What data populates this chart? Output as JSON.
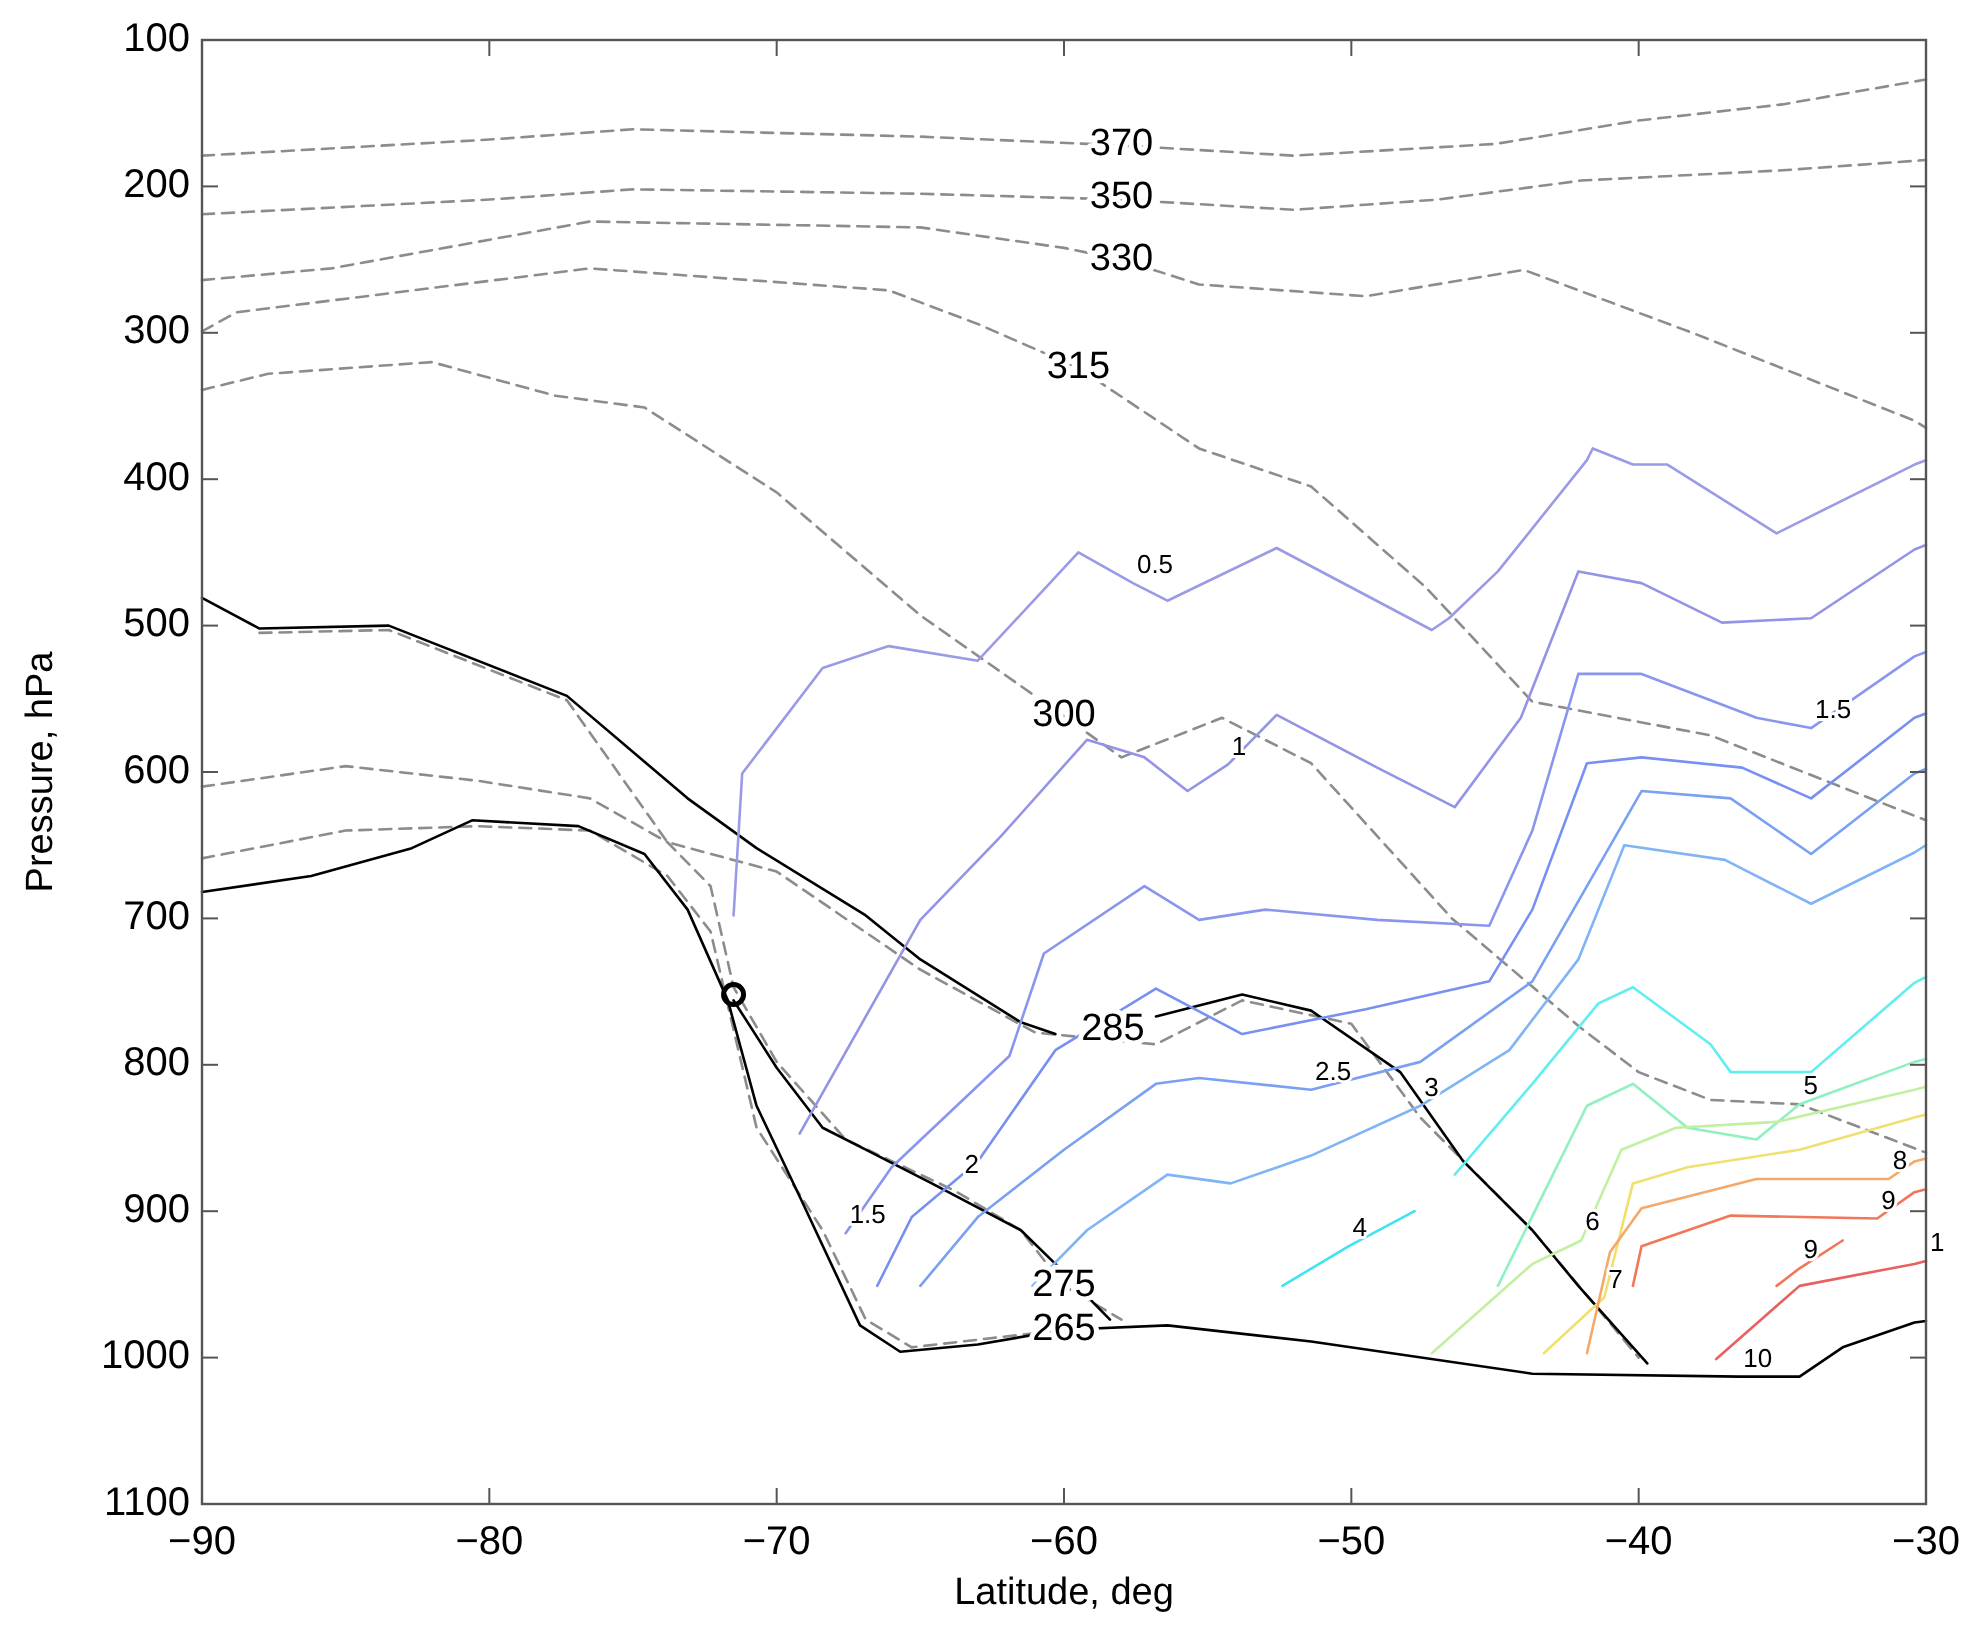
{
  "chart_data": {
    "type": "line",
    "xlabel": "Latitude, deg",
    "ylabel": "Pressure, hPa",
    "xlim": [
      -90,
      -30
    ],
    "ylim": [
      1100,
      100
    ],
    "xticks": [
      -90,
      -80,
      -70,
      -60,
      -50,
      -40,
      -30
    ],
    "yticks": [
      100,
      200,
      300,
      400,
      500,
      600,
      700,
      800,
      900,
      1000,
      1100
    ],
    "grid": false,
    "series": [
      {
        "color": "#8c8c8c",
        "line_style": "dashed",
        "x": [
          -90,
          -80,
          -75,
          -65,
          -58,
          -52,
          -45,
          -40,
          -35,
          -30
        ],
        "values": [
          179,
          168,
          161,
          166,
          172,
          179,
          171,
          155,
          144,
          127
        ]
      },
      {
        "color": "#8c8c8c",
        "line_style": "dashed",
        "x": [
          -90,
          -80,
          -75,
          -65,
          -58,
          -52,
          -47,
          -42,
          -35,
          -30
        ],
        "values": [
          219,
          209,
          202,
          205,
          209,
          216,
          209,
          196,
          189,
          182
        ]
      },
      {
        "color": "#8c8c8c",
        "line_style": "dashed",
        "x": [
          -90,
          -85.5,
          -76.5,
          -65,
          -60,
          -58,
          -55.3,
          -49.5,
          -44,
          -38,
          -30.4,
          -30
        ],
        "values": [
          264,
          256,
          224,
          228,
          242,
          250,
          267,
          275,
          257,
          301,
          360,
          365
        ]
      },
      {
        "color": "#8c8c8c",
        "line_style": "dashed",
        "x": [
          -90,
          -88.8,
          -76.5,
          -66.1,
          -63,
          -59.5,
          -55.3,
          -51.4,
          -47.4,
          -43.7,
          -37.5,
          -30
        ],
        "values": [
          299,
          286,
          256,
          271,
          294,
          324,
          379,
          405,
          474,
          552,
          575,
          633
        ]
      },
      {
        "color": "#8c8c8c",
        "line_style": "dashed",
        "x": [
          -90,
          -87.7,
          -82,
          -77.7,
          -74.6,
          -70,
          -65,
          -60,
          -58,
          -54.5,
          -51.4,
          -46.5,
          -42,
          -40,
          -37.5,
          -34.4,
          -30
        ],
        "values": [
          339,
          328,
          320,
          343,
          351,
          409,
          493,
          562,
          590,
          563,
          594,
          700,
          775,
          805,
          824,
          827,
          860
        ]
      },
      {
        "color": "#8c8c8c",
        "line_style": "dashed",
        "x": [
          -88,
          -83.5,
          -77.3,
          -73.8,
          -70,
          -65,
          -61,
          -56.8,
          -53.8,
          -50,
          -47.6,
          -43.7,
          -40
        ],
        "values": [
          505,
          503,
          551,
          648,
          668,
          735,
          778,
          786,
          756,
          772,
          836,
          913,
          1000
        ]
      },
      {
        "color": "#8c8c8c",
        "line_style": "dashed",
        "x": [
          -90,
          -85,
          -80.4,
          -76.5,
          -73.8,
          -72.3,
          -71.5,
          -70,
          -67.6,
          -63.8,
          -61.5,
          -60,
          -58
        ],
        "values": [
          610,
          596,
          606,
          618,
          648,
          678,
          747,
          798,
          851,
          886,
          913,
          951,
          974
        ]
      },
      {
        "color": "#8c8c8c",
        "line_style": "dashed",
        "x": [
          -90,
          -85,
          -80.4,
          -76.5,
          -73.8,
          -72.3,
          -70.7,
          -68.4,
          -66.9,
          -65.3,
          -60
        ],
        "values": [
          659,
          640,
          637,
          640,
          671,
          709,
          843,
          913,
          974,
          993,
          981
        ]
      },
      {
        "color": "#000000",
        "line_style": "solid",
        "x": [
          -90,
          -86.2,
          -82.7,
          -80.6,
          -76.9,
          -74.6,
          -73.1,
          -71.7,
          -70.7,
          -69.2,
          -67.1,
          -65.7,
          -63,
          -60,
          -56.4,
          -51.4,
          -43.7,
          -36.5,
          -34.4,
          -32.9,
          -30.4,
          -30
        ],
        "values": [
          682,
          671,
          652,
          633,
          637,
          656,
          694,
          756,
          828,
          890,
          978,
          996,
          991,
          981,
          978,
          989,
          1011,
          1013,
          1013,
          993,
          976,
          975
        ]
      },
      {
        "color": "#000000",
        "line_style": "solid",
        "x": [
          -90,
          -88,
          -83.5,
          -77.3,
          -73.1,
          -70.7,
          -66.9,
          -65,
          -61.5,
          -60.3
        ],
        "values": [
          481,
          502,
          500,
          548,
          618,
          652,
          698,
          728,
          771,
          779
        ]
      },
      {
        "color": "#000000",
        "line_style": "solid",
        "x": [
          -71.5,
          -70,
          -68.4,
          -66.9,
          -64.6,
          -61.5,
          -60.3,
          -58.4
        ],
        "values": [
          756,
          802,
          843,
          858,
          881,
          913,
          936,
          974
        ]
      },
      {
        "color": "#000000",
        "line_style": "solid",
        "x": [
          -56.8,
          -53.8,
          -51.4,
          -48.3,
          -46.1,
          -43.7,
          -42.1,
          -39.7
        ],
        "values": [
          767,
          752,
          763,
          805,
          866,
          913,
          951,
          1004
        ]
      },
      {
        "type": "scatter",
        "marker": "circle",
        "color": "#000000",
        "x": [
          -71.5
        ],
        "values": [
          752
        ]
      },
      {
        "color": "#9a9ae6",
        "line_style": "solid",
        "x": [
          -71.5,
          -71.2,
          -68.4,
          -66.1,
          -63,
          -59.5,
          -57.6,
          -56.4,
          -52.6,
          -47.2,
          -46.6,
          -44.9,
          -41.8,
          -41.6,
          -40.2,
          -39,
          -35.2,
          -30.4,
          -30
        ],
        "values": [
          698,
          601,
          529,
          514,
          524,
          450,
          471,
          483,
          447,
          503,
          495,
          463,
          387,
          379,
          390,
          390,
          437,
          390,
          387
        ]
      },
      {
        "color": "#9494e6",
        "line_style": "solid",
        "x": [
          -69.2,
          -65,
          -62.2,
          -59.2,
          -57.2,
          -55.7,
          -54.3,
          -52.6,
          -49.1,
          -46.4,
          -44.1,
          -42.1,
          -39.9,
          -37.1,
          -34,
          -30.4,
          -30
        ],
        "values": [
          847,
          701,
          644,
          578,
          590,
          613,
          595,
          561,
          597,
          624,
          563,
          463,
          471,
          498,
          495,
          448,
          445
        ]
      },
      {
        "color": "#8a96ee",
        "line_style": "solid",
        "x": [
          -67.6,
          -66,
          -61.9,
          -60.7,
          -57.2,
          -55.3,
          -53,
          -49.1,
          -45.2,
          -43.7,
          -42.1,
          -39.9,
          -35.9,
          -34,
          -30.4,
          -30
        ],
        "values": [
          915,
          870,
          794,
          724,
          678,
          701,
          694,
          701,
          705,
          640,
          533,
          533,
          563,
          570,
          521,
          518
        ]
      },
      {
        "color": "#7890f2",
        "line_style": "solid",
        "x": [
          -66.5,
          -65.3,
          -63,
          -60.3,
          -56.8,
          -53.8,
          -49.5,
          -45.2,
          -43.7,
          -41.8,
          -39.9,
          -36.4,
          -34,
          -30.4,
          -30
        ],
        "values": [
          951,
          904,
          866,
          790,
          748,
          779,
          762,
          743,
          694,
          594,
          590,
          597,
          618,
          563,
          560
        ]
      },
      {
        "color": "#7aa0f4",
        "line_style": "solid",
        "x": [
          -65,
          -63,
          -60,
          -56.8,
          -55.3,
          -51.4,
          -47.6,
          -43.7,
          -41.8,
          -39.9,
          -36.8,
          -34,
          -30.4,
          -30
        ],
        "values": [
          951,
          904,
          858,
          813,
          809,
          817,
          798,
          743,
          678,
          613,
          618,
          656,
          601,
          598
        ]
      },
      {
        "color": "#80b4f6",
        "line_style": "solid",
        "x": [
          -61.1,
          -59.2,
          -56.4,
          -54.2,
          -51.4,
          -47.6,
          -44.5,
          -42.1,
          -40.5,
          -37,
          -34,
          -30.4,
          -30
        ],
        "values": [
          951,
          913,
          875,
          881,
          862,
          828,
          790,
          728,
          650,
          660,
          690,
          655,
          650
        ]
      },
      {
        "color": "#40e4f0",
        "line_style": "solid",
        "x": [
          -52.4,
          -50.1,
          -47.8
        ],
        "values": [
          951,
          924,
          900
        ]
      },
      {
        "color": "#60eef0",
        "line_style": "solid",
        "x": [
          -46.4,
          -43.7,
          -41.4,
          -40.2,
          -37.5,
          -36.8,
          -34,
          -30.4,
          -30
        ],
        "values": [
          875,
          813,
          758,
          747,
          786,
          805,
          805,
          744,
          740
        ]
      },
      {
        "color": "#90f0c0",
        "line_style": "solid",
        "x": [
          -44.9,
          -41.8,
          -40.2,
          -38.3,
          -35.9,
          -34.4,
          -30.4,
          -30
        ],
        "values": [
          951,
          828,
          813,
          843,
          851,
          827,
          798,
          796
        ]
      },
      {
        "color": "#c0f0a0",
        "line_style": "solid",
        "x": [
          -47.2,
          -43.7,
          -42,
          -40.6,
          -38.7,
          -35.2,
          -30.4,
          -30
        ],
        "values": [
          997,
          936,
          920,
          858,
          843,
          839,
          817,
          815
        ]
      },
      {
        "color": "#f0e070",
        "line_style": "solid",
        "x": [
          -43.3,
          -41.2,
          -40.2,
          -38.3,
          -34.4,
          -30.4,
          -30
        ],
        "values": [
          997,
          959,
          881,
          870,
          858,
          836,
          834
        ]
      },
      {
        "color": "#f5a868",
        "line_style": "solid",
        "x": [
          -41.8,
          -41,
          -39.9,
          -35.9,
          -31.3,
          -30.4,
          -30
        ],
        "values": [
          997,
          928,
          898,
          878,
          878,
          866,
          864
        ]
      },
      {
        "color": "#f07858",
        "line_style": "solid",
        "x": [
          -40.2,
          -39.9,
          -36.8,
          -31.7,
          -30.4,
          -30
        ],
        "values": [
          951,
          924,
          903,
          905,
          887,
          885
        ]
      },
      {
        "color": "#f07858",
        "line_style": "solid",
        "x": [
          -35.2,
          -34.4,
          -32.9
        ],
        "values": [
          951,
          939,
          920
        ]
      },
      {
        "color": "#e86060",
        "line_style": "solid",
        "x": [
          -37.3,
          -34.4,
          -30.4,
          -30
        ],
        "values": [
          1001,
          951,
          936,
          934
        ]
      }
    ],
    "annotations": [
      {
        "text": "370",
        "x": -58,
        "y": 172
      },
      {
        "text": "350",
        "x": -58,
        "y": 208
      },
      {
        "text": "330",
        "x": -58,
        "y": 250
      },
      {
        "text": "315",
        "x": -59.5,
        "y": 324
      },
      {
        "text": "300",
        "x": -60,
        "y": 562
      },
      {
        "text": "285",
        "x": -58.3,
        "y": 776
      },
      {
        "text": "275",
        "x": -60,
        "y": 951
      },
      {
        "text": "265",
        "x": -60,
        "y": 981
      },
      {
        "text": "0.5",
        "x": -57.6,
        "y": 471
      },
      {
        "text": "1",
        "x": -54.3,
        "y": 595
      },
      {
        "text": "1.5",
        "x": -34,
        "y": 570
      },
      {
        "text": "1.5",
        "x": -67.6,
        "y": 915
      },
      {
        "text": "2",
        "x": -63.6,
        "y": 881
      },
      {
        "text": "2.5",
        "x": -51.4,
        "y": 817
      },
      {
        "text": "3",
        "x": -47.6,
        "y": 828
      },
      {
        "text": "4",
        "x": -50.1,
        "y": 924
      },
      {
        "text": "5",
        "x": -34.4,
        "y": 827
      },
      {
        "text": "6",
        "x": -42,
        "y": 920
      },
      {
        "text": "7",
        "x": -41.2,
        "y": 959
      },
      {
        "text": "8",
        "x": -31.3,
        "y": 878
      },
      {
        "text": "9",
        "x": -31.7,
        "y": 905
      },
      {
        "text": "9",
        "x": -34.4,
        "y": 939
      },
      {
        "text": "10",
        "x": -36.5,
        "y": 1013
      },
      {
        "text": "1",
        "x": -30,
        "y": 934
      }
    ]
  }
}
